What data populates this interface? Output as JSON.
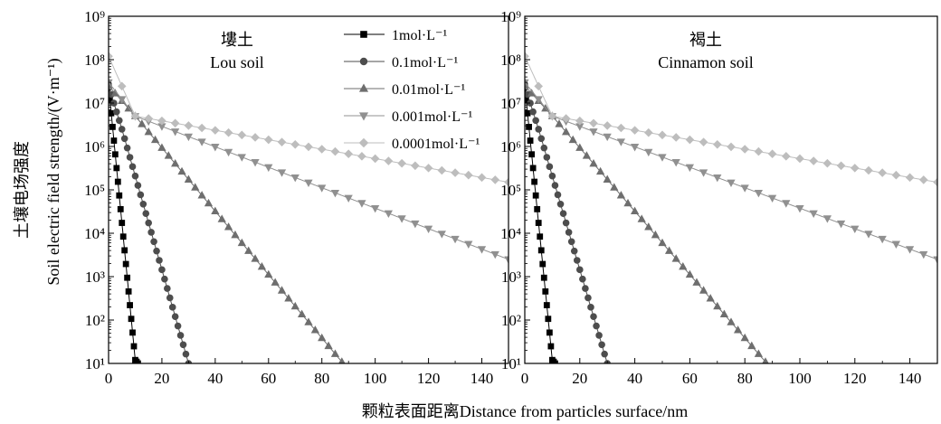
{
  "figure": {
    "y_title_cn": "土壤电场强度",
    "y_title_en": "Soil electric field strength/(V·m⁻¹)",
    "x_title": "颗粒表面距离Distance from particles surface/nm"
  },
  "legend": [
    {
      "label": "1mol·L⁻¹",
      "marker": "square",
      "color": "#000000"
    },
    {
      "label": "0.1mol·L⁻¹",
      "marker": "circle",
      "color": "#4d4d4d"
    },
    {
      "label": "0.01mol·L⁻¹",
      "marker": "triangle-up",
      "color": "#6e6e6e"
    },
    {
      "label": "0.001mol·L⁻¹",
      "marker": "triangle-down",
      "color": "#909090"
    },
    {
      "label": "0.0001mol·L⁻¹",
      "marker": "diamond",
      "color": "#bdbdbd"
    }
  ],
  "chart_data": [
    {
      "type": "scatter",
      "panel_title_cn": "塿土",
      "panel_title_en": "Lou soil",
      "xlim": [
        0,
        150
      ],
      "ylim": [
        10,
        1000000000
      ],
      "y_scale": "log",
      "x_ticks": [
        "0",
        "20",
        "40",
        "60",
        "80",
        "100",
        "120",
        "140"
      ],
      "y_ticks": [
        "10¹",
        "10²",
        "10³",
        "10⁴",
        "10⁵",
        "10⁶",
        "10⁷",
        "10⁸",
        "10⁹"
      ],
      "series": [
        {
          "name": "1mol·L⁻¹",
          "points": [
            [
              0,
              25000000
            ],
            [
              10,
              12
            ],
            [
              11,
              10
            ]
          ]
        },
        {
          "name": "0.1mol·L⁻¹",
          "points": [
            [
              0,
              25000000
            ],
            [
              5,
              2500000
            ],
            [
              30,
              10
            ]
          ]
        },
        {
          "name": "0.01mol·L⁻¹",
          "points": [
            [
              0,
              25000000
            ],
            [
              10,
              5000000
            ],
            [
              88,
              10
            ]
          ]
        },
        {
          "name": "0.001mol·L⁻¹",
          "points": [
            [
              0,
              30000000
            ],
            [
              10,
              5000000
            ],
            [
              150,
              2500
            ]
          ]
        },
        {
          "name": "0.0001mol·L⁻¹",
          "points": [
            [
              0,
              120000000
            ],
            [
              10,
              5000000
            ],
            [
              150,
              150000
            ]
          ]
        }
      ]
    },
    {
      "type": "scatter",
      "panel_title_cn": "褐土",
      "panel_title_en": "Cinnamon soil",
      "xlim": [
        0,
        150
      ],
      "ylim": [
        10,
        1000000000
      ],
      "y_scale": "log",
      "x_ticks": [
        "0",
        "20",
        "40",
        "60",
        "80",
        "100",
        "120",
        "140"
      ],
      "y_ticks": [
        "10¹",
        "10²",
        "10³",
        "10⁴",
        "10⁵",
        "10⁶",
        "10⁷",
        "10⁸",
        "10⁹"
      ],
      "series": [
        {
          "name": "1mol·L⁻¹",
          "points": [
            [
              0,
              25000000
            ],
            [
              10,
              12
            ],
            [
              11,
              10
            ]
          ]
        },
        {
          "name": "0.1mol·L⁻¹",
          "points": [
            [
              0,
              25000000
            ],
            [
              5,
              2500000
            ],
            [
              30,
              10
            ]
          ]
        },
        {
          "name": "0.01mol·L⁻¹",
          "points": [
            [
              0,
              25000000
            ],
            [
              10,
              5000000
            ],
            [
              88,
              10
            ]
          ]
        },
        {
          "name": "0.001mol·L⁻¹",
          "points": [
            [
              0,
              30000000
            ],
            [
              10,
              5000000
            ],
            [
              150,
              2500
            ]
          ]
        },
        {
          "name": "0.0001mol·L⁻¹",
          "points": [
            [
              0,
              120000000
            ],
            [
              10,
              5000000
            ],
            [
              150,
              150000
            ]
          ]
        }
      ]
    }
  ]
}
